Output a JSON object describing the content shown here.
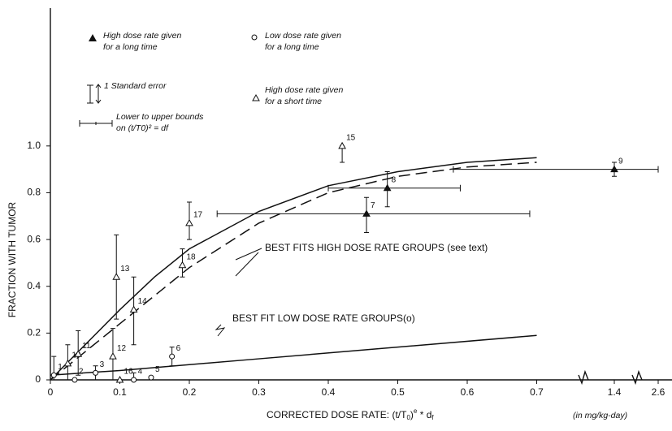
{
  "chart_data": {
    "type": "scatter",
    "x_label": [
      "CORRECTED DOSE RATE: (t/T",
      "0",
      ")",
      "e",
      " * d",
      "f"
    ],
    "x_units": "(in mg/kg-day)",
    "y_label": "FRACTION WITH TUMOR",
    "xticks": [
      0,
      0.1,
      0.2,
      0.3,
      0.4,
      0.5,
      0.6,
      0.7,
      1.4,
      2.6
    ],
    "yticks": [
      0,
      0.2,
      0.4,
      0.6,
      0.8,
      {
        "value": 1.0,
        "label": "1.0"
      }
    ],
    "ylim": [
      0,
      1.1
    ],
    "series": [
      {
        "name": [
          "High dose rate given",
          "for a long time"
        ],
        "marker": "filled-triangle",
        "color": "#111",
        "ids": [
          7,
          8,
          9
        ],
        "x": [
          0.455,
          0.485,
          1.4
        ],
        "values": [
          0.71,
          0.82,
          0.9
        ],
        "ylow": [
          0.63,
          0.74,
          0.87
        ],
        "yhigh": [
          0.78,
          0.89,
          0.93
        ],
        "xlow": [
          0.24,
          0.4,
          0.58
        ],
        "xhigh": [
          0.69,
          0.59,
          2.6
        ]
      },
      {
        "name": [
          "Low dose rate given",
          "for a long time"
        ],
        "marker": "open-circle",
        "color": "#111",
        "ids": [
          1,
          2,
          3,
          4,
          5,
          6
        ],
        "x": [
          0.005,
          0.035,
          0.065,
          0.12,
          0.145,
          0.175
        ],
        "values": [
          0.02,
          0,
          0.03,
          0,
          0.01,
          0.1
        ],
        "ylow": [
          0,
          null,
          0,
          null,
          null,
          0.06
        ],
        "yhigh": [
          0.1,
          null,
          0.06,
          0.03,
          null,
          0.14
        ]
      },
      {
        "name": [
          "High dose rate given",
          "for a short time"
        ],
        "marker": "open-triangle",
        "color": "#111",
        "ids": [
          10,
          11,
          12,
          13,
          14,
          15,
          16,
          17,
          18
        ],
        "x": [
          0.025,
          0.04,
          0.09,
          0.095,
          0.12,
          0.42,
          0.1,
          0.2,
          0.19
        ],
        "values": [
          0.07,
          0.11,
          0.1,
          0.44,
          0.3,
          1.0,
          0,
          0.67,
          0.49
        ],
        "ylow": [
          0,
          0.02,
          0,
          0.26,
          0.15,
          0.93,
          null,
          0.6,
          0.44
        ],
        "yhigh": [
          0.15,
          0.21,
          0.22,
          0.62,
          0.44,
          null,
          null,
          0.76,
          0.56
        ]
      }
    ],
    "curves": [
      {
        "style": "solid",
        "x": [
          0,
          0.05,
          0.1,
          0.15,
          0.2,
          0.3,
          0.4,
          0.5,
          0.6,
          0.7
        ],
        "values": [
          0,
          0.15,
          0.3,
          0.44,
          0.56,
          0.72,
          0.83,
          0.89,
          0.93,
          0.95
        ]
      },
      {
        "style": "dashed",
        "x": [
          0,
          0.1,
          0.2,
          0.3,
          0.4,
          0.5,
          0.6,
          0.7
        ],
        "values": [
          0,
          0.24,
          0.48,
          0.67,
          0.8,
          0.87,
          0.91,
          0.93
        ]
      },
      {
        "style": "solid",
        "x": [
          0,
          0.1,
          0.3,
          0.5,
          0.7
        ],
        "values": [
          0.02,
          0.04,
          0.09,
          0.14,
          0.19
        ]
      }
    ],
    "legend_extra": [
      [
        "1  Standard error"
      ],
      [
        "Lower to upper bounds",
        "on (t/T0)² = df"
      ]
    ],
    "annotations": [
      "BEST FITS HIGH DOSE RATE GROUPS (see text)",
      "BEST FIT LOW DOSE RATE GROUPS(o)"
    ]
  }
}
